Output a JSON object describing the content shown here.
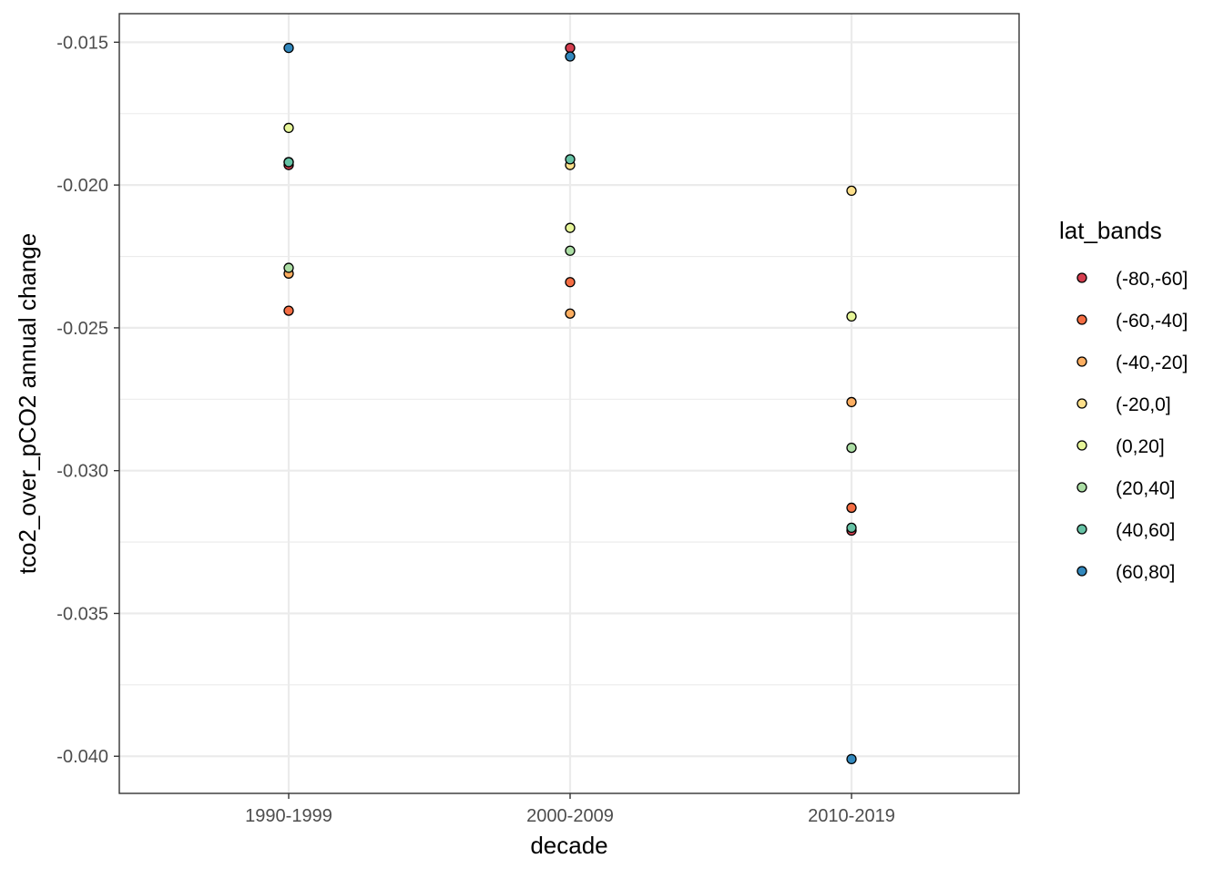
{
  "chart_data": {
    "type": "scatter",
    "title": "",
    "xlabel": "decade",
    "ylabel": "tco2_over_pCO2 annual change",
    "categories": [
      "1990-1999",
      "2000-2009",
      "2010-2019"
    ],
    "ylim": [
      -0.0413,
      -0.014
    ],
    "y_ticks": [
      -0.015,
      -0.02,
      -0.025,
      -0.03,
      -0.035,
      -0.04
    ],
    "y_tick_labels": [
      "-0.015",
      "-0.020",
      "-0.025",
      "-0.030",
      "-0.035",
      "-0.040"
    ],
    "grid": true,
    "legend": {
      "title": "lat_bands",
      "position": "right"
    },
    "series": [
      {
        "name": "(-80,-60]",
        "color": "#D53E4F",
        "values": [
          -0.0193,
          -0.0152,
          -0.0321
        ]
      },
      {
        "name": "(-60,-40]",
        "color": "#F46D43",
        "values": [
          -0.0244,
          -0.0234,
          -0.0313
        ]
      },
      {
        "name": "(-40,-20]",
        "color": "#FDAE61",
        "values": [
          -0.0231,
          -0.0245,
          -0.0276
        ]
      },
      {
        "name": "(-20,0]",
        "color": "#FEE08B",
        "values": [
          -0.0192,
          -0.0193,
          -0.0202
        ]
      },
      {
        "name": "(0,20]",
        "color": "#E6F598",
        "values": [
          -0.018,
          -0.0215,
          -0.0246
        ]
      },
      {
        "name": "(20,40]",
        "color": "#ABDDA4",
        "values": [
          -0.0229,
          -0.0223,
          -0.0292
        ]
      },
      {
        "name": "(40,60]",
        "color": "#66C2A5",
        "values": [
          -0.0192,
          -0.0191,
          -0.032
        ]
      },
      {
        "name": "(60,80]",
        "color": "#3288BD",
        "values": [
          -0.0152,
          -0.0155,
          -0.0401
        ]
      }
    ]
  }
}
